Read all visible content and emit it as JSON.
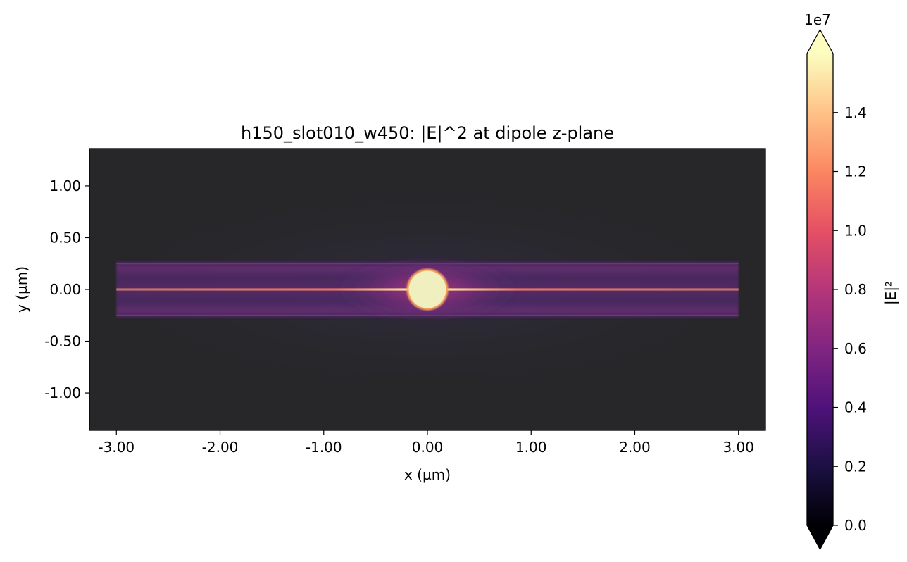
{
  "chart_data": {
    "type": "heatmap",
    "title": "h150_slot010_w450: |E|^2 at dipole z-plane",
    "xlabel": "x (µm)",
    "ylabel": "y (µm)",
    "xlim": [
      -3.26,
      3.26
    ],
    "ylim": [
      -1.36,
      1.36
    ],
    "x_ticks": [
      -3,
      -2,
      -1,
      0,
      1,
      2,
      3
    ],
    "x_tick_labels": [
      "-3.00",
      "-2.00",
      "-1.00",
      "0.00",
      "1.00",
      "2.00",
      "3.00"
    ],
    "y_ticks": [
      1,
      0.5,
      0,
      -0.5,
      -1
    ],
    "y_tick_labels": [
      "1.00",
      "0.50",
      "0.00",
      "-0.50",
      "-1.00"
    ],
    "colormap": "magma",
    "background_color": "#27272a",
    "field_features": {
      "simulation_x_range": [
        -3.0,
        3.0
      ],
      "waveguide_y_range": [
        -0.25,
        0.25
      ],
      "slot_y": 0.0,
      "hotspot_center": [
        0.0,
        0.0
      ],
      "hotspot_radius": 0.18
    },
    "colorbar": {
      "label": "|E|²",
      "offset_text": "1e7",
      "vmin": 0.0,
      "vmax": 1.6,
      "extend": "both",
      "ticks": [
        0.0,
        0.2,
        0.4,
        0.6,
        0.8,
        1.0,
        1.2,
        1.4
      ],
      "tick_labels": [
        "0.0",
        "0.2",
        "0.4",
        "0.6",
        "0.8",
        "1.0",
        "1.2",
        "1.4"
      ]
    }
  }
}
